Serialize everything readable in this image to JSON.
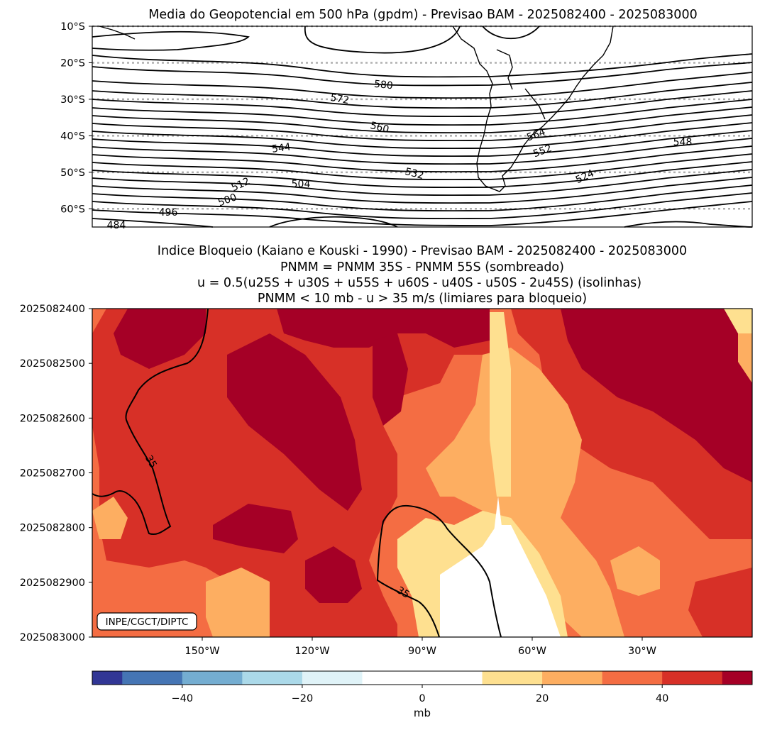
{
  "chart_data": [
    {
      "type": "contour",
      "title": "Media do Geopotencial em 500 hPa (gpdm) - Previsao BAM - 2025082400 - 2025083000",
      "y_tick_labels": [
        "10°S",
        "20°S",
        "30°S",
        "40°S",
        "50°S",
        "60°S"
      ],
      "ylim": [
        -10,
        -65
      ],
      "gridlines_lat": [
        -10,
        -20,
        -30,
        -40,
        -50,
        -60
      ],
      "contour_labels": [
        "580",
        "572",
        "560",
        "544",
        "532",
        "504",
        "512",
        "500",
        "496",
        "484",
        "564",
        "552",
        "548",
        "524"
      ],
      "units": "gpdm"
    },
    {
      "type": "heatmap",
      "title_lines": [
        "Indice Bloqueio (Kaiano e Kouski - 1990) - Previsao BAM - 2025082400 - 2025083000",
        "PNMM = PNMM 35S - PNMM 55S (sombreado)",
        "u = 0.5(u25S + u30S + u55S + u60S - u40S - u50S - 2u45S) (isolinhas)",
        "PNMM < 10 mb - u > 35 m/s (limiares para bloqueio)"
      ],
      "y_tick_labels": [
        "2025082400",
        "2025082500",
        "2025082600",
        "2025082700",
        "2025082800",
        "2025082900",
        "2025083000"
      ],
      "x_tick_labels": [
        "150°W",
        "120°W",
        "90°W",
        "60°W",
        "30°W"
      ],
      "contour_labels": [
        "35",
        "35"
      ],
      "contour_level": 35,
      "watermark": "INPE/CGCT/DIPTC",
      "colorbar": {
        "levels": [
          -55,
          -50,
          -40,
          -30,
          -20,
          -10,
          10,
          20,
          30,
          40,
          50,
          55
        ],
        "colors": [
          "#313695",
          "#4575b4",
          "#74add1",
          "#abd9e9",
          "#e0f3f8",
          "#ffffff",
          "#fee090",
          "#fdae61",
          "#f46d43",
          "#d73027",
          "#a50026"
        ],
        "tick_values": [
          -40,
          -20,
          0,
          20,
          40
        ],
        "tick_labels": [
          "−40",
          "−20",
          "0",
          "20",
          "40"
        ],
        "label": "mb"
      }
    }
  ]
}
